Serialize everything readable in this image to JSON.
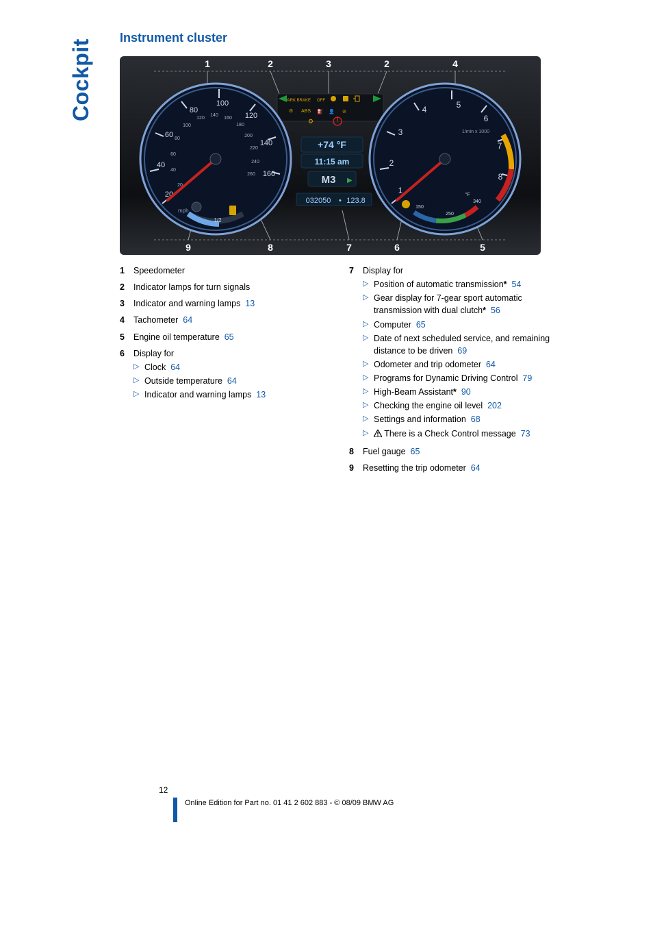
{
  "colors": {
    "brand": "#1159a6",
    "text": "#000000",
    "bg": "#ffffff",
    "cluster_bg_top": "#2a2d33",
    "cluster_bg_bot": "#0d0f12",
    "gauge_face": "#0a1426",
    "gauge_rim": "#3a5a8a",
    "gauge_rim_light": "#7fa2d6",
    "tick": "#cfd8e8",
    "needle": "#c5221f",
    "lcd_bg": "#0e1f2e",
    "lcd_txt": "#9fd0ff",
    "rpm_yellow": "#e8a400",
    "rpm_red": "#c5221f",
    "temp_blue": "#2b66a5",
    "temp_green": "#3aa04a"
  },
  "page": {
    "tab": "Cockpit",
    "section_title": "Instrument cluster",
    "page_number": "12",
    "footer": "Online Edition for Part no. 01 41 2 602 883 - © 08/09 BMW AG"
  },
  "cluster": {
    "callouts_top": [
      "1",
      "2",
      "3",
      "2",
      "4"
    ],
    "callouts_bottom": [
      "9",
      "8",
      "7",
      "6",
      "5"
    ],
    "speedo": {
      "mph_ticks": [
        "20",
        "40",
        "60",
        "80",
        "100",
        "120",
        "140",
        "160"
      ],
      "kmh_ticks": [
        "20",
        "40",
        "60",
        "80",
        "100",
        "120",
        "140",
        "160",
        "180",
        "200",
        "220",
        "240",
        "260"
      ],
      "unit": "mph",
      "fuel_fraction_label": "1/2"
    },
    "tacho": {
      "ticks": [
        "1",
        "2",
        "3",
        "4",
        "5",
        "6",
        "7",
        "8"
      ],
      "scale_label": "1/min x 1000",
      "temp_labels": [
        "150",
        "250",
        "340"
      ],
      "temp_unit": "°F"
    },
    "center": {
      "temp": "+74 °F",
      "time": "11:15 am",
      "mode": "M3",
      "odo": "032050",
      "trip": "123.8"
    },
    "telltales": [
      "PARK BRAKE",
      "OFF",
      "ABS"
    ]
  },
  "legend": {
    "left": [
      {
        "n": "1",
        "text": "Speedometer"
      },
      {
        "n": "2",
        "text": "Indicator lamps for turn signals"
      },
      {
        "n": "3",
        "text": "Indicator and warning lamps",
        "pref": "13"
      },
      {
        "n": "4",
        "text": "Tachometer",
        "pref": "64"
      },
      {
        "n": "5",
        "text": "Engine oil temperature",
        "pref": "65"
      },
      {
        "n": "6",
        "text": "Display for",
        "subs": [
          {
            "text": "Clock",
            "pref": "64"
          },
          {
            "text": "Outside temperature",
            "pref": "64"
          },
          {
            "text": "Indicator and warning lamps",
            "pref": "13"
          }
        ]
      }
    ],
    "right": [
      {
        "n": "7",
        "text": "Display for",
        "subs": [
          {
            "text": "Position of automatic transmission",
            "star": true,
            "pref": "54"
          },
          {
            "text": "Gear display for 7-gear sport automatic transmission with dual clutch",
            "star": true,
            "pref": "56"
          },
          {
            "text": "Computer",
            "pref": "65"
          },
          {
            "text": "Date of next scheduled service, and remaining distance to be driven",
            "pref": "69"
          },
          {
            "text": "Odometer and trip odometer",
            "pref": "64"
          },
          {
            "text": "Programs for Dynamic Driving Control",
            "pref": "79"
          },
          {
            "text": "High-Beam Assistant",
            "star": true,
            "pref": "90"
          },
          {
            "text": "Checking the engine oil level",
            "pref": "202"
          },
          {
            "text": "Settings and information",
            "pref": "68"
          },
          {
            "warn": true,
            "text": "There is a Check Control message",
            "pref": "73"
          }
        ]
      },
      {
        "n": "8",
        "text": "Fuel gauge",
        "pref": "65"
      },
      {
        "n": "9",
        "text": "Resetting the trip odometer",
        "pref": "64"
      }
    ]
  }
}
